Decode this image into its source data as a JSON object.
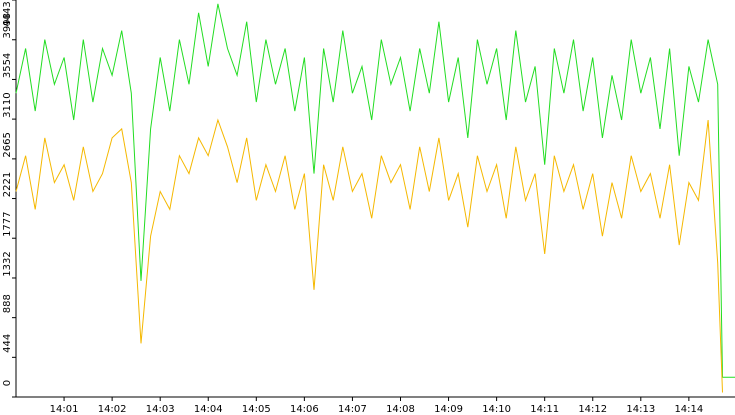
{
  "chart_data": {
    "type": "line",
    "x": [
      0,
      0.2,
      0.4,
      0.6,
      0.8,
      1.0,
      1.2,
      1.4,
      1.6,
      1.8,
      2.0,
      2.2,
      2.4,
      2.6,
      2.8,
      3.0,
      3.2,
      3.4,
      3.6,
      3.8,
      4.0,
      4.2,
      4.4,
      4.6,
      4.8,
      5.0,
      5.2,
      5.4,
      5.6,
      5.8,
      6.0,
      6.2,
      6.4,
      6.6,
      6.8,
      7.0,
      7.2,
      7.4,
      7.6,
      7.8,
      8.0,
      8.2,
      8.4,
      8.6,
      8.8,
      9.0,
      9.2,
      9.4,
      9.6,
      9.8,
      10.0,
      10.2,
      10.4,
      10.6,
      10.8,
      11.0,
      11.2,
      11.4,
      11.6,
      11.8,
      12.0,
      12.2,
      12.4,
      12.6,
      12.8,
      13.0,
      13.2,
      13.4,
      13.6,
      13.8,
      14.0,
      14.2,
      14.4,
      14.6,
      14.7,
      14.96
    ],
    "series": [
      {
        "name": "green",
        "color": "#22dd22",
        "values": [
          3400,
          3900,
          3200,
          4000,
          3500,
          3800,
          3100,
          4000,
          3300,
          3900,
          3600,
          4100,
          3400,
          1300,
          3000,
          3800,
          3200,
          4000,
          3500,
          4300,
          3700,
          4400,
          3900,
          3600,
          4200,
          3300,
          4000,
          3500,
          3900,
          3200,
          3800,
          2500,
          3900,
          3300,
          4100,
          3400,
          3700,
          3100,
          4000,
          3500,
          3800,
          3200,
          3900,
          3400,
          4200,
          3300,
          3800,
          2900,
          4000,
          3500,
          3900,
          3100,
          4100,
          3300,
          3700,
          2600,
          3900,
          3400,
          4000,
          3200,
          3800,
          2900,
          3600,
          3100,
          4000,
          3400,
          3800,
          3000,
          3900,
          2700,
          3700,
          3300,
          4000,
          3500,
          220,
          220
        ]
      },
      {
        "name": "orange",
        "color": "#f5b800",
        "values": [
          2300,
          2700,
          2100,
          2900,
          2400,
          2600,
          2200,
          2800,
          2300,
          2500,
          2900,
          3000,
          2400,
          600,
          1800,
          2300,
          2100,
          2700,
          2500,
          2900,
          2700,
          3100,
          2800,
          2400,
          2900,
          2200,
          2600,
          2300,
          2700,
          2100,
          2500,
          1200,
          2600,
          2200,
          2800,
          2300,
          2500,
          2000,
          2700,
          2400,
          2600,
          2100,
          2800,
          2300,
          2900,
          2200,
          2500,
          1900,
          2700,
          2300,
          2600,
          2000,
          2800,
          2200,
          2500,
          1600,
          2700,
          2300,
          2600,
          2100,
          2500,
          1800,
          2400,
          2000,
          2700,
          2300,
          2500,
          2000,
          2600,
          1700,
          2400,
          2200,
          3100,
          1500,
          50,
          null
        ]
      }
    ],
    "xlim": [
      0,
      14.96
    ],
    "ylim": [
      0,
      4443
    ],
    "xticks": [
      {
        "value": 1,
        "label": "14:01"
      },
      {
        "value": 2,
        "label": "14:02"
      },
      {
        "value": 3,
        "label": "14:03"
      },
      {
        "value": 4,
        "label": "14:04"
      },
      {
        "value": 5,
        "label": "14:05"
      },
      {
        "value": 6,
        "label": "14:06"
      },
      {
        "value": 7,
        "label": "14:07"
      },
      {
        "value": 8,
        "label": "14:08"
      },
      {
        "value": 9,
        "label": "14:09"
      },
      {
        "value": 10,
        "label": "14:10"
      },
      {
        "value": 11,
        "label": "14:11"
      },
      {
        "value": 12,
        "label": "14:12"
      },
      {
        "value": 13,
        "label": "14:13"
      },
      {
        "value": 14,
        "label": "14:14"
      }
    ],
    "yticks": [
      0,
      444,
      888,
      1332,
      1777,
      2221,
      2665,
      3110,
      3554,
      3998,
      4443
    ]
  }
}
